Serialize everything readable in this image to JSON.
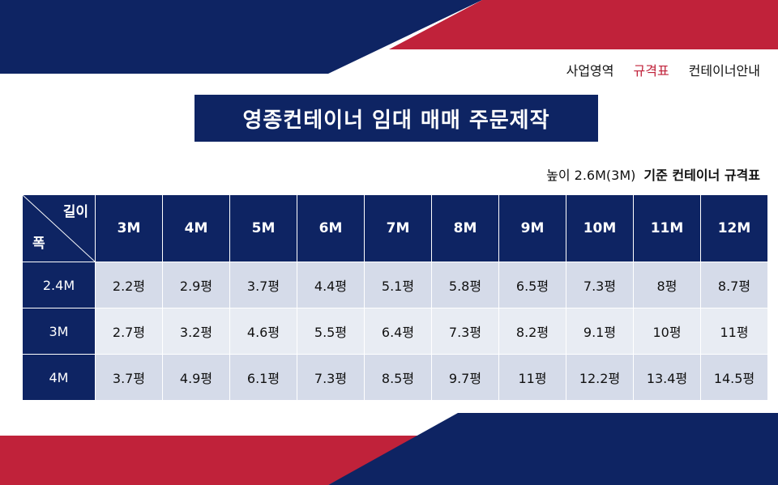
{
  "nav": {
    "items": [
      "사업영역",
      "규격표",
      "컨테이너안내"
    ],
    "active_index": 1
  },
  "title": "영종컨테이너 임대 매매 주문제작",
  "caption": {
    "prefix": "높이 2.6M(3M)",
    "bold": "기준 컨테이너 규격표"
  },
  "table": {
    "corner_length": "길이",
    "corner_width": "폭",
    "columns": [
      "3M",
      "4M",
      "5M",
      "6M",
      "7M",
      "8M",
      "9M",
      "10M",
      "11M",
      "12M"
    ],
    "rows": [
      {
        "label": "2.4M",
        "cells": [
          "2.2평",
          "2.9평",
          "3.7평",
          "4.4평",
          "5.1평",
          "5.8평",
          "6.5평",
          "7.3평",
          "8평",
          "8.7평"
        ]
      },
      {
        "label": "3M",
        "cells": [
          "2.7평",
          "3.2평",
          "4.6평",
          "5.5평",
          "6.4평",
          "7.3평",
          "8.2평",
          "9.1평",
          "10평",
          "11평"
        ]
      },
      {
        "label": "4M",
        "cells": [
          "3.7평",
          "4.9평",
          "6.1평",
          "7.3평",
          "8.5평",
          "9.7평",
          "11평",
          "12.2평",
          "13.4평",
          "14.5평"
        ]
      }
    ]
  },
  "colors": {
    "navy": "#0e2463",
    "red": "#c0223a",
    "row_dark": "#d5dbe9",
    "row_light": "#e8ecf3"
  }
}
